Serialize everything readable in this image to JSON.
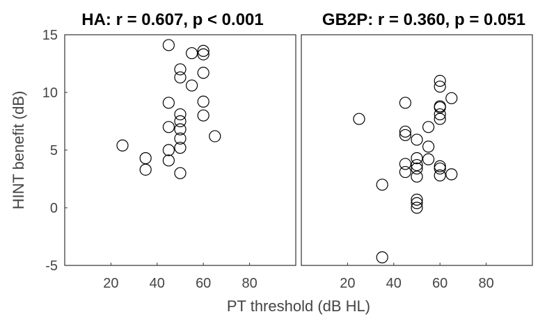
{
  "chart_data": [
    {
      "type": "scatter",
      "title": "HA: r = 0.607, p < 0.001",
      "xlim": [
        0,
        100
      ],
      "ylim": [
        -5,
        15
      ],
      "xticks": [
        "20",
        "40",
        "60",
        "80"
      ],
      "yticks": [
        "-5",
        "0",
        "5",
        "10",
        "15"
      ],
      "grid": false,
      "points": [
        {
          "x": 25,
          "y": 5.4
        },
        {
          "x": 35,
          "y": 4.3
        },
        {
          "x": 35,
          "y": 3.3
        },
        {
          "x": 45,
          "y": 14.1
        },
        {
          "x": 45,
          "y": 9.1
        },
        {
          "x": 45,
          "y": 7.0
        },
        {
          "x": 45,
          "y": 5.0
        },
        {
          "x": 45,
          "y": 4.1
        },
        {
          "x": 50,
          "y": 12.0
        },
        {
          "x": 50,
          "y": 11.3
        },
        {
          "x": 50,
          "y": 8.1
        },
        {
          "x": 50,
          "y": 7.5
        },
        {
          "x": 50,
          "y": 6.8
        },
        {
          "x": 50,
          "y": 6.0
        },
        {
          "x": 50,
          "y": 5.2
        },
        {
          "x": 50,
          "y": 3.0
        },
        {
          "x": 55,
          "y": 13.4
        },
        {
          "x": 55,
          "y": 10.6
        },
        {
          "x": 60,
          "y": 13.6
        },
        {
          "x": 60,
          "y": 13.3
        },
        {
          "x": 60,
          "y": 11.7
        },
        {
          "x": 60,
          "y": 9.2
        },
        {
          "x": 60,
          "y": 8.0
        },
        {
          "x": 65,
          "y": 6.2
        }
      ]
    },
    {
      "type": "scatter",
      "title": "GB2P: r = 0.360, p = 0.051",
      "xlim": [
        0,
        100
      ],
      "ylim": [
        -5,
        15
      ],
      "xticks": [
        "20",
        "40",
        "60",
        "80"
      ],
      "yticks": [],
      "grid": false,
      "points": [
        {
          "x": 25,
          "y": 7.7
        },
        {
          "x": 35,
          "y": 2.0
        },
        {
          "x": 35,
          "y": -4.3
        },
        {
          "x": 45,
          "y": 9.1
        },
        {
          "x": 45,
          "y": 6.6
        },
        {
          "x": 45,
          "y": 6.3
        },
        {
          "x": 45,
          "y": 3.8
        },
        {
          "x": 45,
          "y": 3.1
        },
        {
          "x": 50,
          "y": 5.9
        },
        {
          "x": 50,
          "y": 4.3
        },
        {
          "x": 50,
          "y": 3.7
        },
        {
          "x": 50,
          "y": 3.4
        },
        {
          "x": 50,
          "y": 2.7
        },
        {
          "x": 50,
          "y": 0.7
        },
        {
          "x": 50,
          "y": 0.4
        },
        {
          "x": 50,
          "y": 0.0
        },
        {
          "x": 55,
          "y": 7.0
        },
        {
          "x": 55,
          "y": 5.3
        },
        {
          "x": 55,
          "y": 4.2
        },
        {
          "x": 60,
          "y": 11.0
        },
        {
          "x": 60,
          "y": 10.5
        },
        {
          "x": 60,
          "y": 8.8
        },
        {
          "x": 60,
          "y": 8.7
        },
        {
          "x": 60,
          "y": 8.1
        },
        {
          "x": 60,
          "y": 7.7
        },
        {
          "x": 60,
          "y": 3.6
        },
        {
          "x": 60,
          "y": 3.4
        },
        {
          "x": 60,
          "y": 2.8
        },
        {
          "x": 65,
          "y": 9.5
        },
        {
          "x": 65,
          "y": 2.9
        }
      ]
    }
  ],
  "shared": {
    "xlabel": "PT threshold (dB HL)",
    "ylabel": "HINT benefit (dB)"
  }
}
